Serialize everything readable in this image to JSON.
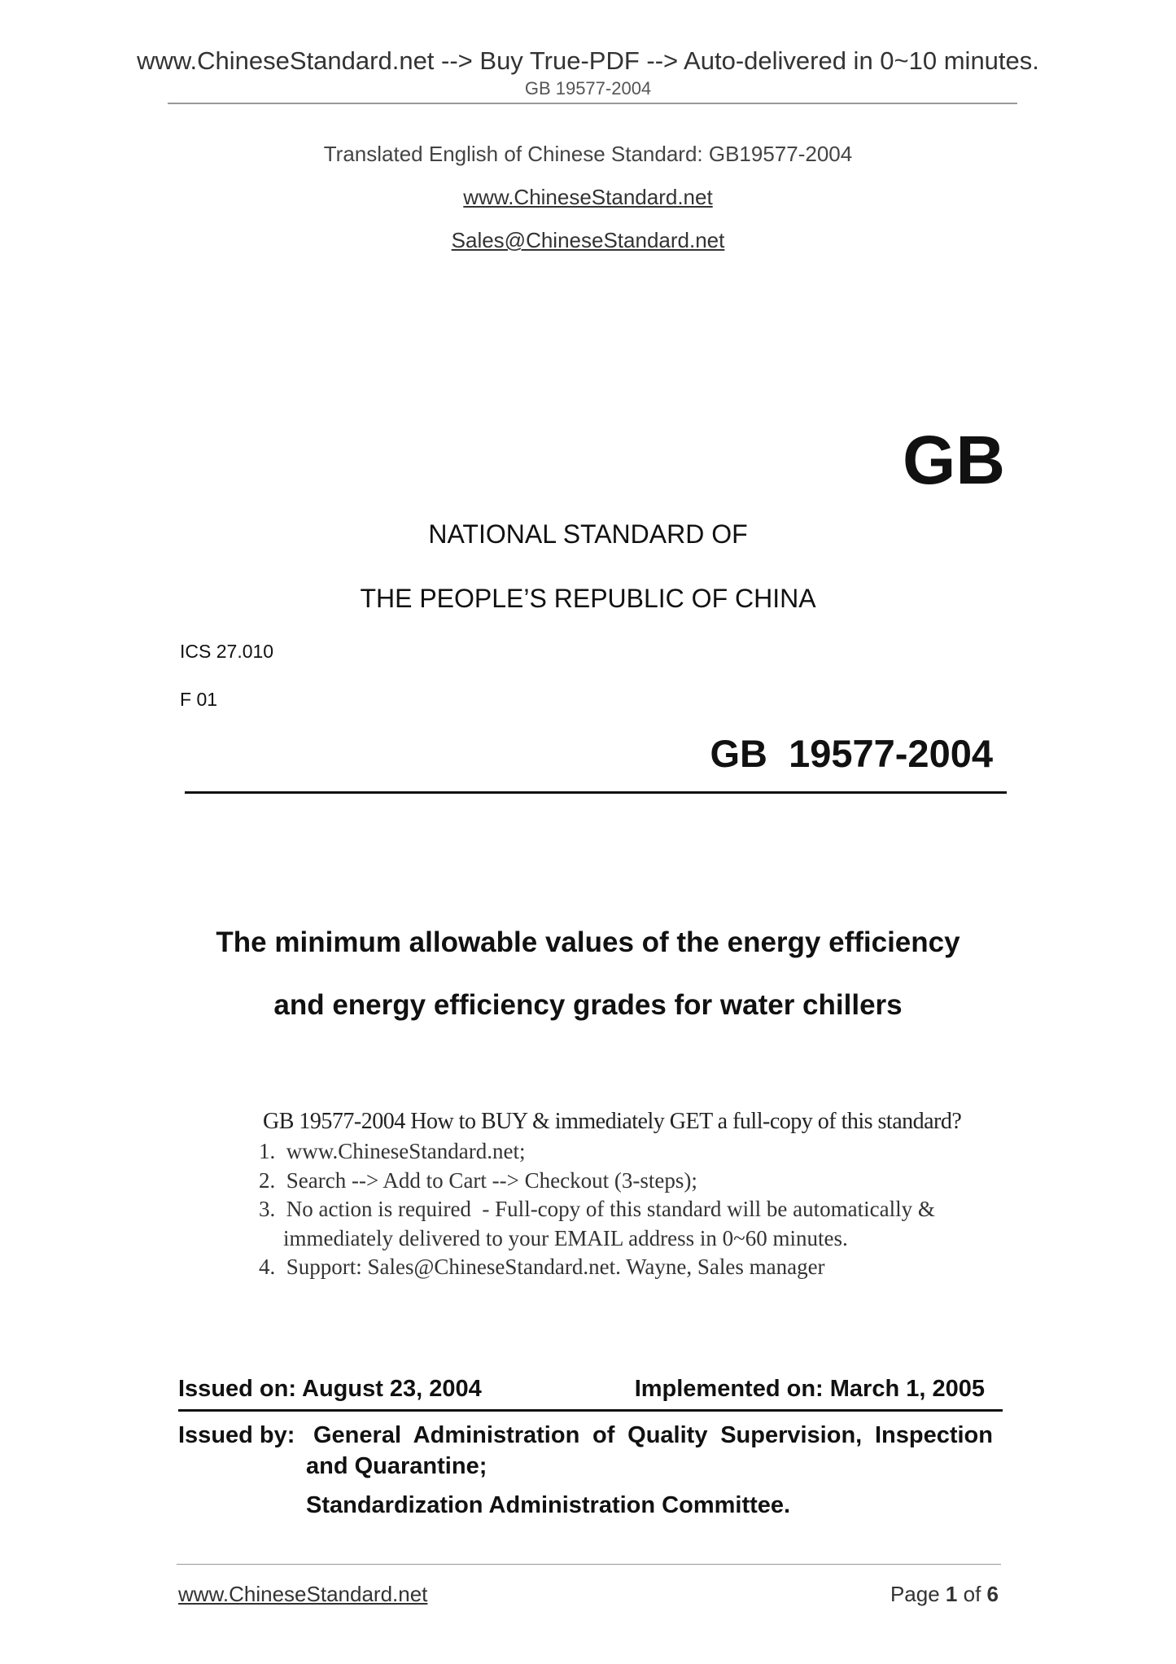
{
  "banner": "www.ChineseStandard.net --> Buy True-PDF --> Auto-delivered in 0~10 minutes.",
  "running_header": "GB 19577-2004",
  "cover": {
    "translated_line": "Translated English of Chinese Standard: GB19577-2004",
    "website": "www.ChineseStandard.net",
    "email": "Sales@ChineseStandard.net",
    "gb_logo": "GB",
    "national_line1": "NATIONAL STANDARD OF",
    "national_line2": "THE PEOPLE’S REPUBLIC OF CHINA",
    "ics": "ICS 27.010",
    "ccs": "F 01",
    "standard_number": "GB  19577-2004",
    "title_line1": "The minimum allowable values of the energy efficiency",
    "title_line2": "and energy efficiency grades for water chillers"
  },
  "buy_box": {
    "heading": "GB 19577-2004 How to BUY & immediately GET a full-copy of this standard?",
    "items": [
      "1.  www.ChineseStandard.net;",
      "2.  Search --> Add to Cart --> Checkout (3-steps);",
      "3.  No action is required  - Full-copy of this standard will be automatically &",
      "immediately delivered to your EMAIL address in 0~60 minutes.",
      "4.  Support: Sales@ChineseStandard.net. Wayne, Sales manager"
    ]
  },
  "issue": {
    "issued_on": "Issued on: August 23, 2004",
    "implemented_on": "Implemented on: March 1, 2005",
    "issued_by_label": "Issued by:",
    "issued_by_line1": "General Administration of Quality Supervision, Inspection",
    "issued_by_line2": "and Quarantine;",
    "issued_by_line3": "Standardization Administration Committee."
  },
  "footer": {
    "website": "www.ChineseStandard.net",
    "page_prefix": "Page ",
    "page_current": "1",
    "page_of": " of ",
    "page_total": "6"
  }
}
